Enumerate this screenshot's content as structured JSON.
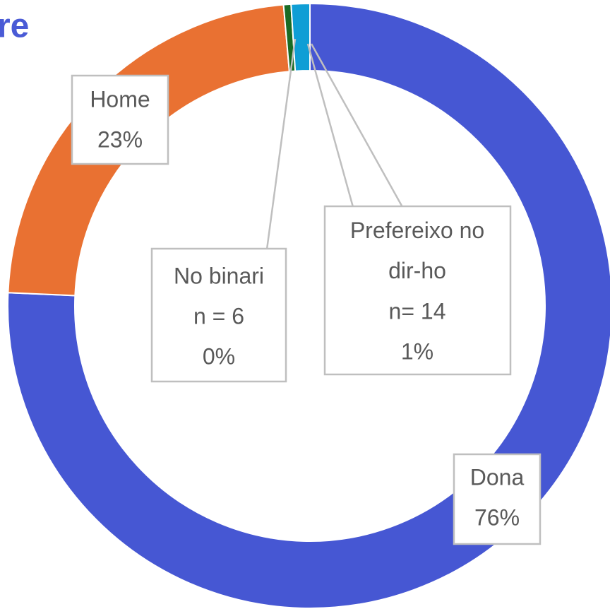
{
  "chart_data": {
    "type": "donut",
    "title": "re",
    "categories": [
      "Dona",
      "Home",
      "No binari",
      "Prefereixo no dir-ho"
    ],
    "values": [
      76,
      23,
      0.4,
      1
    ],
    "value_labels": [
      "76%",
      "23%",
      "0%",
      "1%"
    ],
    "n_labels": [
      null,
      null,
      "n = 6",
      "n= 14"
    ],
    "colors": [
      "#4657d3",
      "#e97132",
      "#196b24",
      "#0f9ed5"
    ]
  }
}
